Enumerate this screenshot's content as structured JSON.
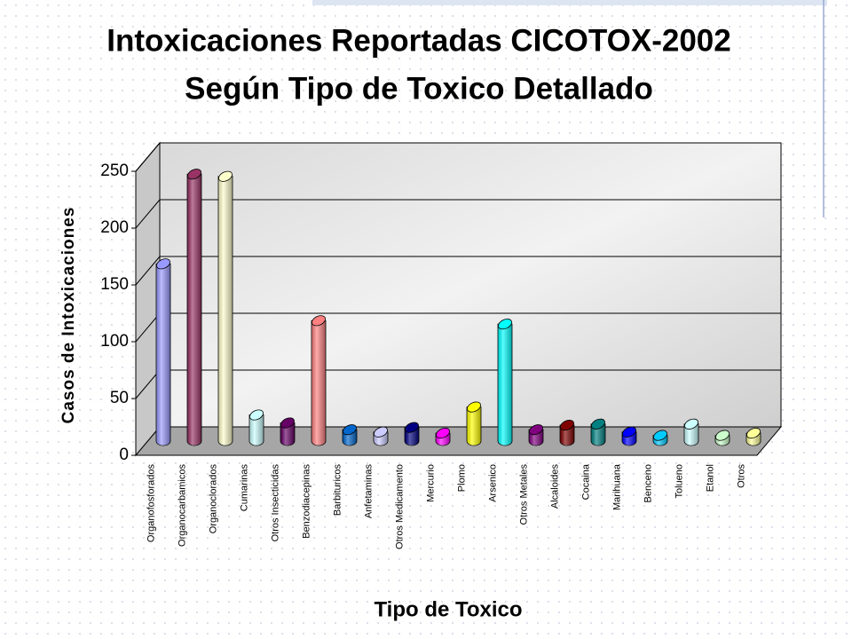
{
  "chart_data": {
    "type": "bar3d",
    "title": "Intoxicaciones Reportadas CICOTOX-2002",
    "subtitle": "Según Tipo de Toxico Detallado",
    "x_label": "Tipo de Toxico",
    "y_label": "Casos de Intoxicaciones",
    "categories": [
      "Organofosforados",
      "Organocarbamicos",
      "Organoclorados",
      "Cumarinas",
      "Otros Insecticidas",
      "Benzodiacepinas",
      "Barbituricos",
      "Anfetaminas",
      "Otros Medicamento",
      "Mercurio",
      "Plomo",
      "Arsenico",
      "Otros Metales",
      "Alcaloides",
      "Cocaina",
      "Marihuana",
      "Benceno",
      "Tolueno",
      "Etanol",
      "Otros"
    ],
    "values": [
      156,
      235,
      233,
      23,
      16,
      106,
      10,
      8,
      12,
      7,
      30,
      103,
      10,
      14,
      15,
      8,
      5,
      15,
      5,
      7
    ],
    "colors": [
      "#9999ff",
      "#993366",
      "#ffffcc",
      "#ccffff",
      "#660066",
      "#ff8080",
      "#0066cc",
      "#ccccff",
      "#000080",
      "#ff00ff",
      "#ffff00",
      "#00ffff",
      "#800080",
      "#800000",
      "#008080",
      "#0000ff",
      "#00ccff",
      "#ccffff",
      "#ccffcc",
      "#ffff99"
    ],
    "ylim": [
      0,
      250
    ],
    "yticks": [
      0,
      50,
      100,
      150,
      200,
      250
    ],
    "grid": true
  }
}
